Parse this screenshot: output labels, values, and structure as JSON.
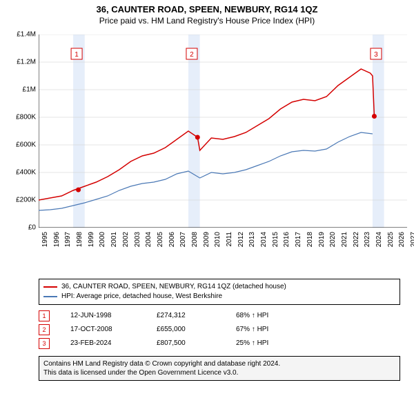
{
  "title": "36, CAUNTER ROAD, SPEEN, NEWBURY, RG14 1QZ",
  "subtitle": "Price paid vs. HM Land Registry's House Price Index (HPI)",
  "chart": {
    "type": "line",
    "background_color": "#ffffff",
    "band_color": "#e6eefa",
    "grid_color": "#cccccc",
    "axis_color": "#000000",
    "x_years": [
      1995,
      1996,
      1997,
      1998,
      1999,
      2000,
      2001,
      2002,
      2003,
      2004,
      2005,
      2006,
      2007,
      2008,
      2009,
      2010,
      2011,
      2012,
      2013,
      2014,
      2015,
      2016,
      2017,
      2018,
      2019,
      2020,
      2021,
      2022,
      2023,
      2024,
      2025,
      2026,
      2027
    ],
    "xlim": [
      1995,
      2027
    ],
    "ylim": [
      0,
      1400000
    ],
    "ytick_step": 200000,
    "yticks": [
      0,
      200000,
      400000,
      600000,
      800000,
      1000000,
      1200000,
      1400000
    ],
    "ytick_labels": [
      "£0",
      "£200K",
      "£400K",
      "£600K",
      "£800K",
      "£1M",
      "£1.2M",
      "£1.4M"
    ],
    "xtick_step": 1,
    "bands": [
      [
        1998,
        1999
      ],
      [
        2008,
        2009
      ],
      [
        2024,
        2025
      ]
    ],
    "series": [
      {
        "name": "36, CAUNTER ROAD, SPEEN, NEWBURY, RG14 1QZ (detached house)",
        "color": "#d40000",
        "line_width": 1.5,
        "data": [
          [
            1995,
            200000
          ],
          [
            1996,
            215000
          ],
          [
            1997,
            230000
          ],
          [
            1998,
            270000
          ],
          [
            1999,
            300000
          ],
          [
            2000,
            330000
          ],
          [
            2001,
            370000
          ],
          [
            2002,
            420000
          ],
          [
            2003,
            480000
          ],
          [
            2004,
            520000
          ],
          [
            2005,
            540000
          ],
          [
            2006,
            580000
          ],
          [
            2007,
            640000
          ],
          [
            2008,
            700000
          ],
          [
            2008.8,
            655000
          ],
          [
            2009,
            560000
          ],
          [
            2010,
            650000
          ],
          [
            2011,
            640000
          ],
          [
            2012,
            660000
          ],
          [
            2013,
            690000
          ],
          [
            2014,
            740000
          ],
          [
            2015,
            790000
          ],
          [
            2016,
            860000
          ],
          [
            2017,
            910000
          ],
          [
            2018,
            930000
          ],
          [
            2019,
            920000
          ],
          [
            2020,
            950000
          ],
          [
            2021,
            1030000
          ],
          [
            2022,
            1090000
          ],
          [
            2023,
            1150000
          ],
          [
            2023.8,
            1120000
          ],
          [
            2024,
            1100000
          ],
          [
            2024.15,
            807500
          ]
        ]
      },
      {
        "name": "HPI: Average price, detached house, West Berkshire",
        "color": "#4a78b5",
        "line_width": 1.2,
        "data": [
          [
            1995,
            125000
          ],
          [
            1996,
            130000
          ],
          [
            1997,
            140000
          ],
          [
            1998,
            160000
          ],
          [
            1999,
            180000
          ],
          [
            2000,
            205000
          ],
          [
            2001,
            230000
          ],
          [
            2002,
            270000
          ],
          [
            2003,
            300000
          ],
          [
            2004,
            320000
          ],
          [
            2005,
            330000
          ],
          [
            2006,
            350000
          ],
          [
            2007,
            390000
          ],
          [
            2008,
            410000
          ],
          [
            2009,
            360000
          ],
          [
            2010,
            400000
          ],
          [
            2011,
            390000
          ],
          [
            2012,
            400000
          ],
          [
            2013,
            420000
          ],
          [
            2014,
            450000
          ],
          [
            2015,
            480000
          ],
          [
            2016,
            520000
          ],
          [
            2017,
            550000
          ],
          [
            2018,
            560000
          ],
          [
            2019,
            555000
          ],
          [
            2020,
            570000
          ],
          [
            2021,
            620000
          ],
          [
            2022,
            660000
          ],
          [
            2023,
            690000
          ],
          [
            2024,
            680000
          ]
        ]
      }
    ],
    "markers": [
      {
        "n": "1",
        "year": 1998.45,
        "price": 274312,
        "color": "#d40000"
      },
      {
        "n": "2",
        "year": 2008.8,
        "price": 655000,
        "color": "#d40000"
      },
      {
        "n": "3",
        "year": 2024.15,
        "price": 807500,
        "color": "#d40000"
      }
    ],
    "marker_boxes": [
      {
        "n": "1",
        "year": 1998.3,
        "y": 1260000,
        "color": "#d40000"
      },
      {
        "n": "2",
        "year": 2008.3,
        "y": 1260000,
        "color": "#d40000"
      },
      {
        "n": "3",
        "year": 2024.3,
        "y": 1260000,
        "color": "#d40000"
      }
    ]
  },
  "legend": [
    {
      "color": "#d40000",
      "label": "36, CAUNTER ROAD, SPEEN, NEWBURY, RG14 1QZ (detached house)"
    },
    {
      "color": "#4a78b5",
      "label": "HPI: Average price, detached house, West Berkshire"
    }
  ],
  "sales": [
    {
      "n": "1",
      "color": "#d40000",
      "date": "12-JUN-1998",
      "price": "£274,312",
      "diff": "68% ↑ HPI"
    },
    {
      "n": "2",
      "color": "#d40000",
      "date": "17-OCT-2008",
      "price": "£655,000",
      "diff": "67% ↑ HPI"
    },
    {
      "n": "3",
      "color": "#d40000",
      "date": "23-FEB-2024",
      "price": "£807,500",
      "diff": "25% ↑ HPI"
    }
  ],
  "footer_line1": "Contains HM Land Registry data © Crown copyright and database right 2024.",
  "footer_line2": "This data is licensed under the Open Government Licence v3.0."
}
